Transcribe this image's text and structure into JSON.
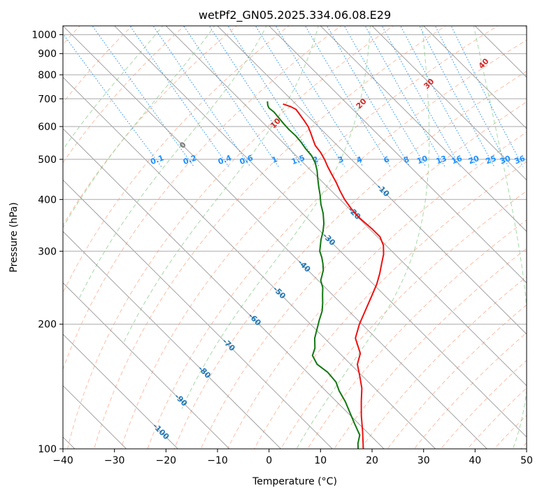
{
  "chart_data": {
    "type": "line",
    "subtype": "skew-t log-p diagram",
    "title": "wetPf2_GN05.2025.334.06.08.E29",
    "xlabel": "Temperature (°C)",
    "ylabel": "Pressure (hPa)",
    "xlim": [
      -40,
      50
    ],
    "ylim": [
      1050,
      100
    ],
    "y_scale": "log",
    "grid": true,
    "x_ticks": [
      -40,
      -30,
      -20,
      -10,
      0,
      10,
      20,
      30,
      40,
      50
    ],
    "x_tick_labels": [
      "−40",
      "−30",
      "−20",
      "−10",
      "0",
      "10",
      "20",
      "30",
      "40",
      "50"
    ],
    "y_ticks": [
      100,
      200,
      300,
      400,
      500,
      600,
      700,
      800,
      900,
      1000
    ],
    "y_tick_labels": [
      "100",
      "200",
      "300",
      "400",
      "500",
      "600",
      "700",
      "800",
      "900",
      "1000"
    ],
    "isotherm_labels": [
      "-100",
      "-90",
      "-80",
      "-70",
      "-60",
      "-50",
      "-40",
      "-30",
      "-20",
      "-10"
    ],
    "mixing_ratio_labels": [
      "0.1",
      "0.2",
      "0.4",
      "0.6",
      "1",
      "1.5",
      "2",
      "3",
      "4",
      "6",
      "8",
      "10",
      "13",
      "16",
      "20",
      "25",
      "30",
      "36"
    ],
    "moist_adiabat_labels": [
      "0",
      "10",
      "20",
      "30",
      "40"
    ],
    "colors": {
      "temperature": "#ee1111",
      "dewpoint": "#117711",
      "isotherm_label": "#1f77b4",
      "mixing_ratio": "#1e90ff",
      "moist_label": "#d62728",
      "dry_adiabat": "#ff9977",
      "moist_adiabat": "#88cc88",
      "skew_line": "#888888",
      "isobar": "#aaaaaa"
    },
    "series": [
      {
        "key": "temperature",
        "points": [
          {
            "p": 680,
            "t": -12.5
          },
          {
            "p": 670,
            "t": -11.5
          },
          {
            "p": 660,
            "t": -11.0
          },
          {
            "p": 640,
            "t": -11.3
          },
          {
            "p": 620,
            "t": -11.6
          },
          {
            "p": 600,
            "t": -12.0
          },
          {
            "p": 580,
            "t": -12.7
          },
          {
            "p": 560,
            "t": -13.5
          },
          {
            "p": 540,
            "t": -14.3
          },
          {
            "p": 520,
            "t": -14.6
          },
          {
            "p": 500,
            "t": -15.2
          },
          {
            "p": 480,
            "t": -16.0
          },
          {
            "p": 460,
            "t": -16.7
          },
          {
            "p": 440,
            "t": -17.4
          },
          {
            "p": 420,
            "t": -18.3
          },
          {
            "p": 400,
            "t": -19.1
          },
          {
            "p": 380,
            "t": -19.6
          },
          {
            "p": 360,
            "t": -19.8
          },
          {
            "p": 340,
            "t": -19.5
          },
          {
            "p": 325,
            "t": -19.5
          },
          {
            "p": 310,
            "t": -20.5
          },
          {
            "p": 295,
            "t": -22.2
          },
          {
            "p": 280,
            "t": -24.4
          },
          {
            "p": 265,
            "t": -26.7
          },
          {
            "p": 250,
            "t": -29.3
          },
          {
            "p": 235,
            "t": -32.4
          },
          {
            "p": 220,
            "t": -35.7
          },
          {
            "p": 200,
            "t": -40.5
          },
          {
            "p": 185,
            "t": -44.0
          },
          {
            "p": 170,
            "t": -46.0
          },
          {
            "p": 160,
            "t": -48.7
          },
          {
            "p": 150,
            "t": -50.5
          },
          {
            "p": 140,
            "t": -52.5
          },
          {
            "p": 130,
            "t": -55.2
          },
          {
            "p": 120,
            "t": -58.0
          },
          {
            "p": 110,
            "t": -60.8
          },
          {
            "p": 100,
            "t": -64.0
          }
        ]
      },
      {
        "key": "dewpoint",
        "points": [
          {
            "p": 690,
            "t": -15.0
          },
          {
            "p": 675,
            "t": -15.7
          },
          {
            "p": 665,
            "t": -16.0
          },
          {
            "p": 650,
            "t": -15.8
          },
          {
            "p": 630,
            "t": -16.0
          },
          {
            "p": 610,
            "t": -16.2
          },
          {
            "p": 590,
            "t": -16.3
          },
          {
            "p": 570,
            "t": -16.2
          },
          {
            "p": 550,
            "t": -16.4
          },
          {
            "p": 530,
            "t": -16.8
          },
          {
            "p": 510,
            "t": -17.0
          },
          {
            "p": 490,
            "t": -17.7
          },
          {
            "p": 470,
            "t": -18.8
          },
          {
            "p": 450,
            "t": -20.2
          },
          {
            "p": 430,
            "t": -21.6
          },
          {
            "p": 410,
            "t": -23.0
          },
          {
            "p": 390,
            "t": -24.6
          },
          {
            "p": 370,
            "t": -26.0
          },
          {
            "p": 350,
            "t": -27.8
          },
          {
            "p": 335,
            "t": -29.5
          },
          {
            "p": 320,
            "t": -31.5
          },
          {
            "p": 300,
            "t": -34.0
          },
          {
            "p": 290,
            "t": -34.8
          },
          {
            "p": 280,
            "t": -35.8
          },
          {
            "p": 270,
            "t": -37.0
          },
          {
            "p": 262,
            "t": -38.3
          },
          {
            "p": 255,
            "t": -39.5
          },
          {
            "p": 245,
            "t": -40.5
          },
          {
            "p": 235,
            "t": -42.0
          },
          {
            "p": 225,
            "t": -43.5
          },
          {
            "p": 215,
            "t": -45.2
          },
          {
            "p": 205,
            "t": -47.4
          },
          {
            "p": 195,
            "t": -49.6
          },
          {
            "p": 185,
            "t": -51.9
          },
          {
            "p": 175,
            "t": -53.8
          },
          {
            "p": 168,
            "t": -55.7
          },
          {
            "p": 160,
            "t": -56.5
          },
          {
            "p": 153,
            "t": -56.0
          },
          {
            "p": 145,
            "t": -56.3
          },
          {
            "p": 138,
            "t": -57.4
          },
          {
            "p": 130,
            "t": -58.3
          },
          {
            "p": 122,
            "t": -59.6
          },
          {
            "p": 115,
            "t": -60.8
          },
          {
            "p": 108,
            "t": -62.0
          },
          {
            "p": 103,
            "t": -64.0
          },
          {
            "p": 100,
            "t": -65.0
          }
        ]
      }
    ]
  }
}
